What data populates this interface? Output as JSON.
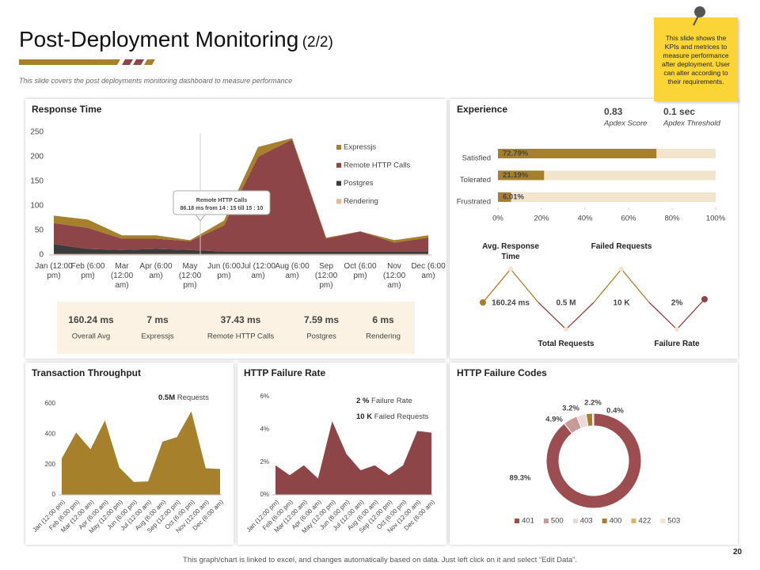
{
  "header": {
    "title": "Post-Deployment Monitoring",
    "title_suffix": "(2/2)",
    "subtitle": "This slide covers the post deployments monitoring dashboard  to measure performance"
  },
  "note": "This slide shows the KPIs and metrices to measure performance after deployment. User can alter according to their requirements.",
  "page_number": 20,
  "footer": "This graph/chart is linked to excel, and changes automatically based on data. Just left click on it and select “Edit Data”.",
  "response_stats": [
    {
      "value": "160.24 ms",
      "label": "Overall Avg"
    },
    {
      "value": "7 ms",
      "label": "Expressjs"
    },
    {
      "value": "37.43 ms",
      "label": "Remote HTTP Calls"
    },
    {
      "value": "7.59 ms",
      "label": "Postgres"
    },
    {
      "value": "6 ms",
      "label": "Rendering"
    }
  ],
  "apdex": [
    {
      "value": "0.83",
      "label": "Apdex Score"
    },
    {
      "value": "0.1 sec",
      "label": "Apdex Threshold"
    }
  ],
  "kpis": [
    {
      "label": "Avg. Response Time",
      "value": "160.24 ms"
    },
    {
      "label": "Total Requests",
      "value": "0.5 M"
    },
    {
      "label": "Failed Requests",
      "value": "10 K"
    },
    {
      "label": "Failure Rate",
      "value": "2%"
    }
  ],
  "chart_data": [
    {
      "type": "stacked-area",
      "title": "Response Time",
      "categories": [
        "Jan (12:00 pm)",
        "Feb (6:00 pm)",
        "Mar (12:00 am)",
        "Apr (6:00 am)",
        "May (12:00 pm)",
        "Jun (6:00 pm)",
        "Jul (12:00 am)",
        "Aug (6:00 am)",
        "Sep (12:00 pm)",
        "Oct (6:00 pm)",
        "Nov (12:00 am)",
        "Dec (6:00 am)"
      ],
      "series": [
        {
          "name": "Expressjs",
          "color": "#a6802a",
          "values": [
            15,
            17,
            7,
            7,
            2,
            10,
            20,
            3,
            2,
            0,
            5,
            5
          ]
        },
        {
          "name": "Remote HTTP Calls",
          "color": "#8e4548",
          "values": [
            43,
            43,
            23,
            21,
            18,
            53,
            193,
            228,
            26,
            41,
            18,
            28
          ]
        },
        {
          "name": "Postgres",
          "color": "#3b3b3b",
          "values": [
            20,
            10,
            8,
            10,
            8,
            5,
            5,
            5,
            5,
            5,
            5,
            5
          ]
        },
        {
          "name": "Rendering",
          "color": "#e3b98c",
          "values": [
            2,
            2,
            2,
            2,
            2,
            2,
            2,
            2,
            2,
            2,
            2,
            2
          ]
        }
      ],
      "ylim": [
        0,
        250
      ],
      "yticks": [
        0,
        50,
        100,
        150,
        200,
        250
      ],
      "grid": false,
      "annotation": {
        "title": "Remote HTTP Calls",
        "text": "86.18 ms from 14 : 15 till 15 : 10"
      }
    },
    {
      "type": "hbar",
      "title": "Experience",
      "categories": [
        "Satisfied",
        "Tolerated",
        "Frustrated"
      ],
      "values": [
        72.79,
        21.19,
        6.01
      ],
      "value_labels": [
        "72.79%",
        "21.19%",
        "6.01%"
      ],
      "color": "#a6802a",
      "track_color": "#f3e5cc",
      "xlim": [
        0,
        100
      ],
      "xticks": [
        {
          "value": 0,
          "label": "0%"
        },
        {
          "value": 20,
          "label": "20%"
        },
        {
          "value": 40,
          "label": "40%"
        },
        {
          "value": 60,
          "label": "60%"
        },
        {
          "value": 80,
          "label": "80%"
        },
        {
          "value": 100,
          "label": "100%"
        }
      ]
    },
    {
      "type": "area",
      "title": "Transaction Throughput",
      "categories": [
        "Jan (12:00 pm)",
        "Feb (6:00 pm)",
        "Mar (12:00 am)",
        "Apr (6:00 am)",
        "May (12:00 pm)",
        "Jun (6:00 pm)",
        "Jul (12:00 am)",
        "Aug (6:00 am)",
        "Sep (12:00 pm)",
        "Oct (6:00 pm)",
        "Nov (12:00 am)",
        "Dec (6:00 am)"
      ],
      "values": [
        240,
        410,
        300,
        490,
        180,
        85,
        88,
        350,
        380,
        550,
        175,
        170
      ],
      "color": "#a6802a",
      "ylim": [
        0,
        600
      ],
      "yticks": [
        0,
        200,
        400,
        600
      ],
      "annotations": [
        {
          "value": "0.5M",
          "label": "Requests"
        }
      ]
    },
    {
      "type": "area",
      "title": "HTTP Failure Rate",
      "categories": [
        "Jan (12:00 pm)",
        "Feb (6:00 pm)",
        "Mar (12:00 am)",
        "Apr (6:00 am)",
        "May (12:00 pm)",
        "Jun (6:00 pm)",
        "Jul (12:00 am)",
        "Aug (6:00 am)",
        "Sep (12:00 pm)",
        "Oct (6:00 pm)",
        "Nov (12:00 am)",
        "Dec (6:00 am)"
      ],
      "values": [
        1.8,
        1.2,
        1.8,
        1.0,
        4.5,
        2.5,
        1.5,
        1.8,
        1.2,
        1.8,
        3.9,
        3.8
      ],
      "color": "#8e4548",
      "ylim": [
        0,
        6
      ],
      "yticks": [
        {
          "value": 0,
          "label": "0%"
        },
        {
          "value": 2,
          "label": "2%"
        },
        {
          "value": 4,
          "label": "4%"
        },
        {
          "value": 6,
          "label": "6%"
        }
      ],
      "annotations": [
        {
          "value": "2 %",
          "label": "Failure Rate"
        },
        {
          "value": "10 K",
          "label": "Failed Requests"
        }
      ]
    },
    {
      "type": "donut",
      "title": "HTTP Failure Codes",
      "categories": [
        "401",
        "500",
        "403",
        "400",
        "422",
        "503"
      ],
      "values": [
        89.3,
        4.9,
        3.2,
        2.2,
        0.4,
        0
      ],
      "value_labels": [
        "89.3%",
        "4.9%",
        "3.2%",
        "2.2%",
        "0.4%",
        null
      ],
      "colors": [
        "#9b4d50",
        "#c99a97",
        "#ecd9d9",
        "#a6802a",
        "#d8b46a",
        "#f3e6cf"
      ]
    }
  ]
}
